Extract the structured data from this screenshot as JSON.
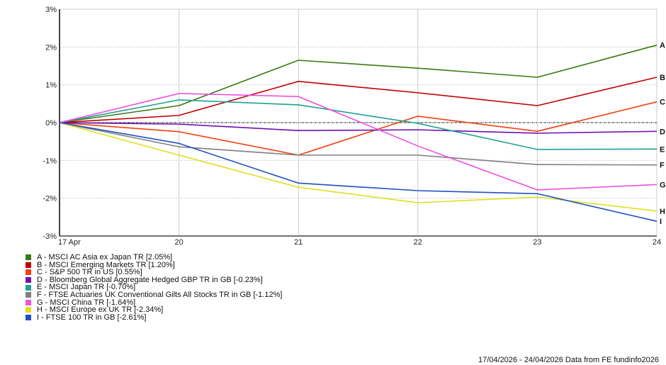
{
  "chart_data": {
    "type": "line",
    "x": [
      "17 Apr",
      "20",
      "21",
      "22",
      "23",
      "24"
    ],
    "ylim": [
      -3,
      3
    ],
    "yticks": [
      "3%",
      "2%",
      "1%",
      "0%",
      "-1%",
      "-2%",
      "-3%"
    ],
    "ytick_values": [
      3,
      2,
      1,
      0,
      -1,
      -2,
      -3
    ],
    "grid": true,
    "legend_placement": "bottom-left",
    "series": [
      {
        "name": "A - MSCI AC Asia ex Japan TR [2.05%]",
        "label": "A",
        "color": "#3a7a10",
        "values": [
          0,
          0.45,
          1.65,
          1.44,
          1.2,
          2.05
        ]
      },
      {
        "name": "B - MSCI Emerging Markets TR [1.20%]",
        "label": "B",
        "color": "#c00000",
        "values": [
          0,
          0.19,
          1.09,
          0.79,
          0.45,
          1.2
        ]
      },
      {
        "name": "C - S&P 500 TR in US [0.55%]",
        "label": "C",
        "color": "#f04010",
        "values": [
          0,
          -0.24,
          -0.86,
          0.17,
          -0.23,
          0.55
        ]
      },
      {
        "name": "D - Bloomberg Global Aggregate Hedged GBP TR in GB [-0.23%]",
        "label": "D",
        "color": "#7010b0",
        "values": [
          0,
          -0.04,
          -0.21,
          -0.19,
          -0.28,
          -0.23
        ]
      },
      {
        "name": "E - MSCI Japan TR [-0.70%]",
        "label": "E",
        "color": "#20a090",
        "values": [
          0,
          0.6,
          0.47,
          -0.02,
          -0.71,
          -0.7
        ]
      },
      {
        "name": "F - FTSE Actuaries UK Conventional Gilts All Stocks TR in GB [-1.12%]",
        "label": "F",
        "color": "#808080",
        "values": [
          0,
          -0.64,
          -0.86,
          -0.86,
          -1.11,
          -1.12
        ]
      },
      {
        "name": "G - MSCI China TR [-1.64%]",
        "label": "G",
        "color": "#f050e0",
        "values": [
          0,
          0.77,
          0.69,
          -0.62,
          -1.78,
          -1.64
        ]
      },
      {
        "name": "H - MSCI Europe ex UK TR [-2.34%]",
        "label": "H",
        "color": "#e0e020",
        "values": [
          0,
          -0.86,
          -1.71,
          -2.12,
          -1.97,
          -2.34
        ]
      },
      {
        "name": "I - FTSE 100 TR in GB [-2.61%]",
        "label": "I",
        "color": "#2050c0",
        "values": [
          0,
          -0.55,
          -1.6,
          -1.8,
          -1.88,
          -2.61
        ]
      }
    ]
  },
  "footer": "17/04/2026 - 24/04/2026 Data from FE fundinfo2026"
}
